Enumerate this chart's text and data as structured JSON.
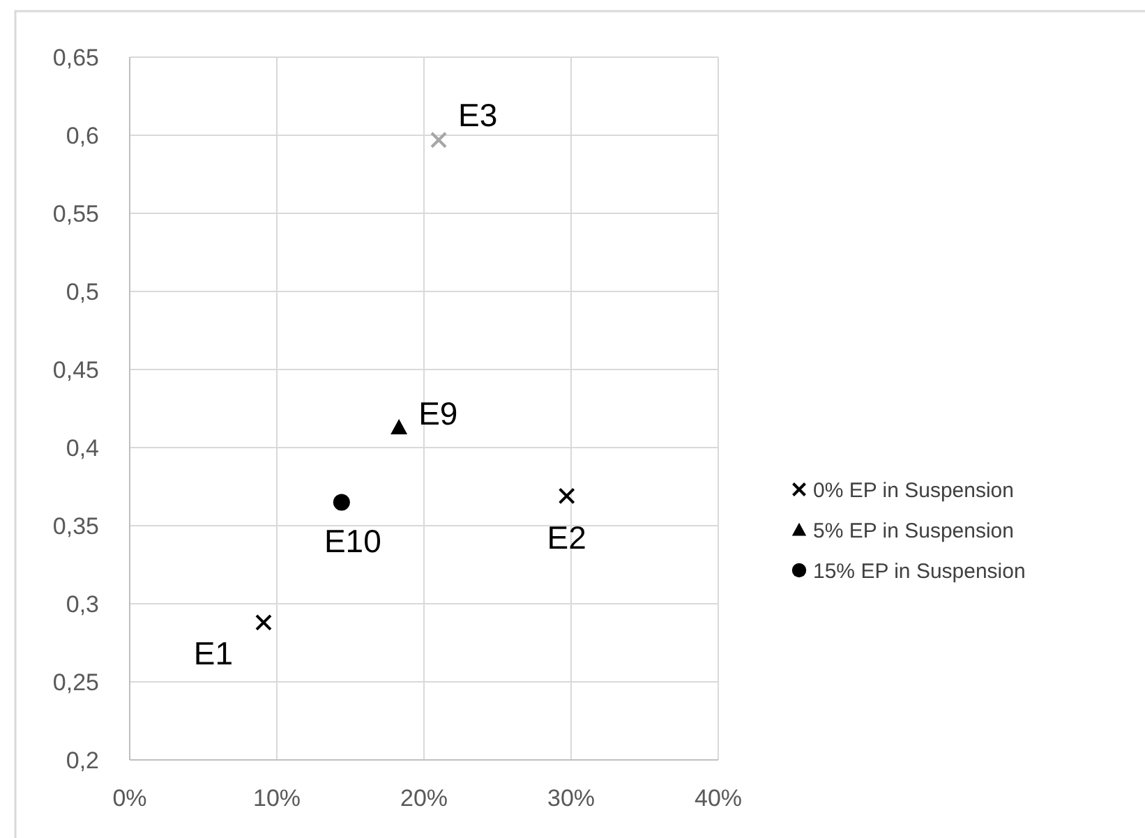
{
  "chart_data": {
    "type": "scatter",
    "xlim": [
      0,
      0.4
    ],
    "ylim": [
      0.2,
      0.65
    ],
    "xticks": [
      {
        "value": 0,
        "label": "0%"
      },
      {
        "value": 0.1,
        "label": "10%"
      },
      {
        "value": 0.2,
        "label": "20%"
      },
      {
        "value": 0.3,
        "label": "30%"
      },
      {
        "value": 0.4,
        "label": "40%"
      }
    ],
    "yticks": [
      {
        "value": 0.2,
        "label": "0,2"
      },
      {
        "value": 0.25,
        "label": "0,25"
      },
      {
        "value": 0.3,
        "label": "0,3"
      },
      {
        "value": 0.35,
        "label": "0,35"
      },
      {
        "value": 0.4,
        "label": "0,4"
      },
      {
        "value": 0.45,
        "label": "0,45"
      },
      {
        "value": 0.5,
        "label": "0,5"
      },
      {
        "value": 0.55,
        "label": "0,55"
      },
      {
        "value": 0.6,
        "label": "0,6"
      },
      {
        "value": 0.65,
        "label": "0,65"
      }
    ],
    "grid": true,
    "legend": "right",
    "series": [
      {
        "name": "0% EP in Suspension",
        "color": "#000000",
        "colors": [
          "#000000",
          "#000000",
          "#a6a6a6"
        ],
        "marker": "cross",
        "x": [
          0.091,
          0.297,
          0.21
        ],
        "values": [
          0.288,
          0.369,
          0.597
        ]
      },
      {
        "name": "5% EP in Suspension",
        "color": "#000000",
        "marker": "triangle",
        "x": [
          0.183
        ],
        "values": [
          0.413
        ]
      },
      {
        "name": "15% EP in Suspension",
        "color": "#000000",
        "marker": "circle",
        "x": [
          0.144
        ],
        "values": [
          0.365
        ]
      }
    ],
    "annotations": [
      {
        "text": "E1",
        "x": 0.091,
        "y": 0.288
      },
      {
        "text": "E2",
        "x": 0.297,
        "y": 0.369
      },
      {
        "text": "E3",
        "x": 0.21,
        "y": 0.597
      },
      {
        "text": "E9",
        "x": 0.183,
        "y": 0.413
      },
      {
        "text": "E10",
        "x": 0.144,
        "y": 0.365
      }
    ]
  }
}
